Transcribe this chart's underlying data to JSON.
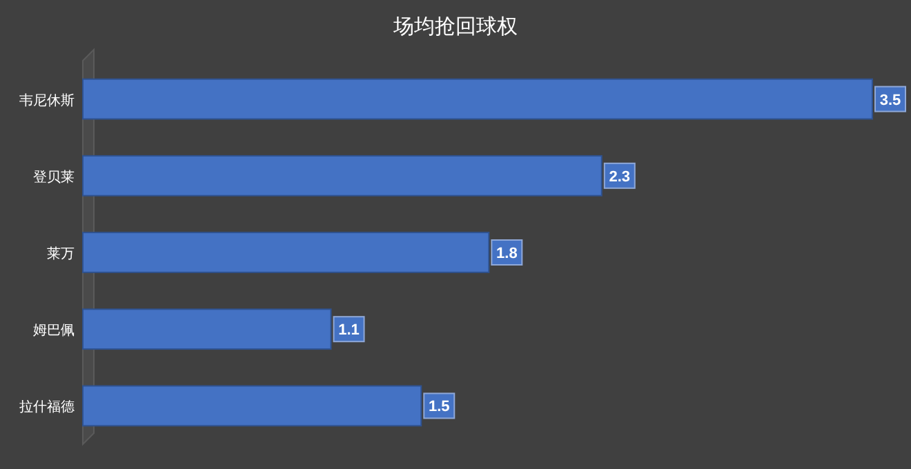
{
  "chart_data": {
    "type": "bar",
    "title": "场均抢回球权",
    "orientation": "horizontal",
    "categories": [
      "韦尼休斯",
      "登贝莱",
      "莱万",
      "姆巴佩",
      "拉什福德"
    ],
    "values": [
      3.5,
      2.3,
      1.8,
      1.1,
      1.5
    ],
    "color": "#4472c4",
    "data_labels": true
  }
}
